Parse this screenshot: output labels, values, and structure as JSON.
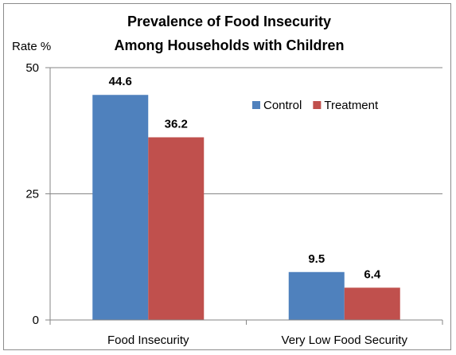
{
  "chart_data": {
    "type": "bar",
    "title": "Prevalence of Food Insecurity",
    "subtitle": "Among Households with Children",
    "ylabel": "Rate %",
    "xlabel": "",
    "categories": [
      "Food Insecurity",
      "Very Low Food Security"
    ],
    "series": [
      {
        "name": "Control",
        "values": [
          44.6,
          9.5
        ],
        "labels": [
          "44.6",
          "9.5"
        ],
        "color": "#4f81bd"
      },
      {
        "name": "Treatment",
        "values": [
          36.2,
          6.4
        ],
        "labels": [
          "36.2",
          "6.4"
        ],
        "color": "#c0504d"
      }
    ],
    "ylim": [
      0,
      50
    ],
    "yticks": [
      0,
      25,
      50
    ],
    "ytick_labels": [
      "0",
      "25",
      "50"
    ],
    "grid": true,
    "legend_position": "top-right",
    "gridline_color": "#868686",
    "axis_color": "#868686"
  }
}
